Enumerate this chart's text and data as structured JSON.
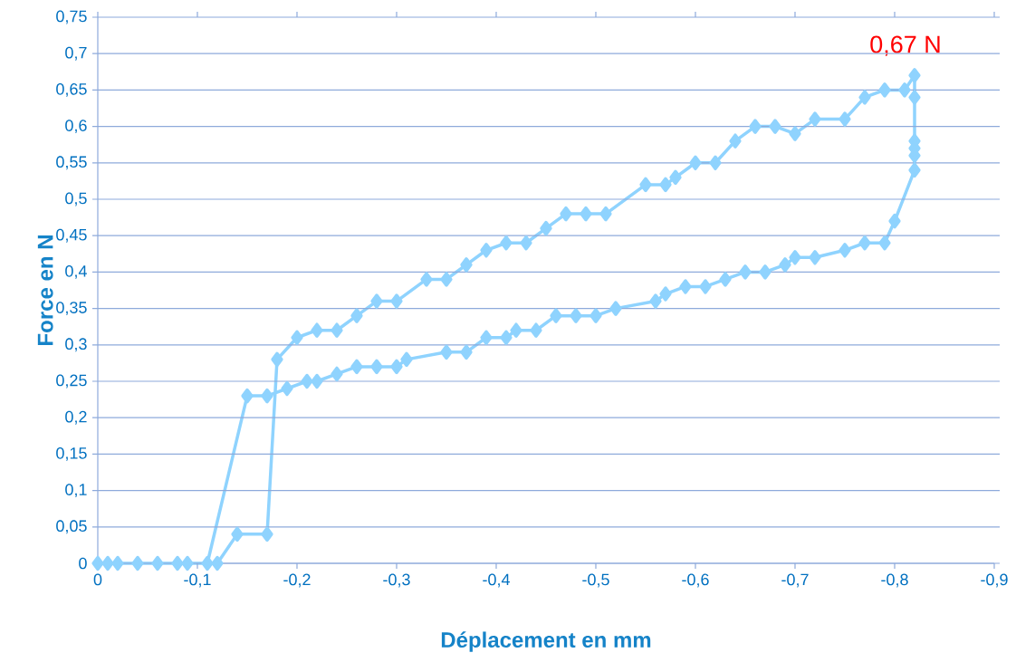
{
  "chart_data": {
    "type": "line",
    "xlabel": "Déplacement en mm",
    "ylabel": "Force en N",
    "x": [
      0,
      -0.01,
      -0.02,
      -0.04,
      -0.06,
      -0.08,
      -0.09,
      -0.12,
      -0.14,
      -0.17,
      -0.18,
      -0.2,
      -0.22,
      -0.24,
      -0.26,
      -0.28,
      -0.3,
      -0.33,
      -0.35,
      -0.37,
      -0.39,
      -0.41,
      -0.43,
      -0.45,
      -0.47,
      -0.49,
      -0.51,
      -0.55,
      -0.57,
      -0.58,
      -0.6,
      -0.62,
      -0.64,
      -0.66,
      -0.68,
      -0.7,
      -0.72,
      -0.75,
      -0.77,
      -0.79,
      -0.81,
      -0.82,
      -0.82,
      -0.82,
      -0.82,
      -0.82,
      -0.82,
      -0.8,
      -0.79,
      -0.77,
      -0.75,
      -0.72,
      -0.7,
      -0.69,
      -0.67,
      -0.65,
      -0.63,
      -0.61,
      -0.59,
      -0.57,
      -0.56,
      -0.52,
      -0.5,
      -0.48,
      -0.46,
      -0.44,
      -0.42,
      -0.41,
      -0.39,
      -0.37,
      -0.35,
      -0.31,
      -0.3,
      -0.28,
      -0.26,
      -0.24,
      -0.22,
      -0.21,
      -0.19,
      -0.17,
      -0.15,
      -0.11
    ],
    "series": [
      {
        "color": "#8fd3fe",
        "values": [
          0,
          0,
          0,
          0,
          0,
          0,
          0,
          0,
          0.04,
          0.04,
          0.28,
          0.31,
          0.32,
          0.32,
          0.34,
          0.36,
          0.36,
          0.39,
          0.39,
          0.41,
          0.43,
          0.44,
          0.44,
          0.46,
          0.48,
          0.48,
          0.48,
          0.52,
          0.52,
          0.53,
          0.55,
          0.55,
          0.58,
          0.6,
          0.6,
          0.59,
          0.61,
          0.61,
          0.64,
          0.65,
          0.65,
          0.67,
          0.64,
          0.58,
          0.57,
          0.56,
          0.54,
          0.47,
          0.44,
          0.44,
          0.43,
          0.42,
          0.42,
          0.41,
          0.4,
          0.4,
          0.39,
          0.38,
          0.38,
          0.37,
          0.36,
          0.35,
          0.34,
          0.34,
          0.34,
          0.32,
          0.32,
          0.31,
          0.31,
          0.29,
          0.29,
          0.28,
          0.27,
          0.27,
          0.27,
          0.26,
          0.25,
          0.25,
          0.24,
          0.23,
          0.23,
          0
        ]
      }
    ],
    "marker": "diamond",
    "line_style": "solid",
    "grid": "y",
    "legend": false,
    "xlim": [
      0,
      -0.9
    ],
    "xticks": [
      0,
      {
        "value": -0.1,
        "label": "-0,1"
      },
      {
        "value": -0.2,
        "label": "-0,2"
      },
      {
        "value": -0.3,
        "label": "-0,3"
      },
      {
        "value": -0.4,
        "label": "-0,4"
      },
      {
        "value": -0.5,
        "label": "-0,5"
      },
      {
        "value": -0.6,
        "label": "-0,6"
      },
      {
        "value": -0.7,
        "label": "-0,7"
      },
      {
        "value": -0.8,
        "label": "-0,8"
      },
      {
        "value": -0.9,
        "label": "-0,9"
      }
    ],
    "ylim": [
      0,
      0.75
    ],
    "yticks": [
      0,
      {
        "value": 0.05,
        "label": "0,05"
      },
      {
        "value": 0.1,
        "label": "0,1"
      },
      {
        "value": 0.15,
        "label": "0,15"
      },
      {
        "value": 0.2,
        "label": "0,2"
      },
      {
        "value": 0.25,
        "label": "0,25"
      },
      {
        "value": 0.3,
        "label": "0,3"
      },
      {
        "value": 0.35,
        "label": "0,35"
      },
      {
        "value": 0.4,
        "label": "0,4"
      },
      {
        "value": 0.45,
        "label": "0,45"
      },
      {
        "value": 0.5,
        "label": "0,5"
      },
      {
        "value": 0.55,
        "label": "0,55"
      },
      {
        "value": 0.6,
        "label": "0,6"
      },
      {
        "value": 0.65,
        "label": "0,65"
      },
      {
        "value": 0.7,
        "label": "0,7"
      },
      {
        "value": 0.75,
        "label": "0,75"
      }
    ],
    "annotations": [
      {
        "text": "0,67 N",
        "x": -0.82,
        "y": 0.67
      }
    ]
  }
}
